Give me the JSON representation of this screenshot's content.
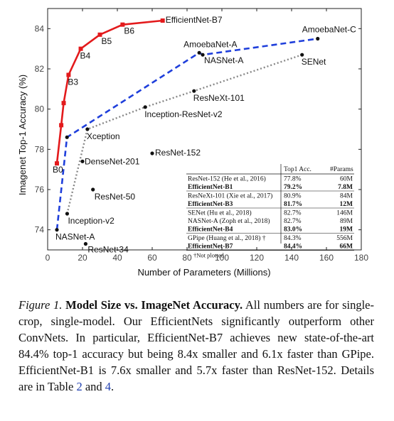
{
  "chart_data": {
    "type": "scatter",
    "xlabel": "Number of Parameters (Millions)",
    "ylabel": "Imagenet Top-1 Accuracy (%)",
    "xlim": [
      0,
      180
    ],
    "ylim": [
      73,
      85
    ],
    "x_ticks": [
      0,
      20,
      40,
      60,
      80,
      100,
      120,
      140,
      160,
      180
    ],
    "y_ticks": [
      74,
      76,
      78,
      80,
      82,
      84
    ],
    "grid": false,
    "colors": {
      "efficientnet": "#e31a1c",
      "nas": "#1f3fdb",
      "handcrafted": "#888888",
      "point": "#111111"
    },
    "series": [
      {
        "style": "red-solid",
        "points": [
          {
            "label": "B0",
            "x": 5.3,
            "y": 77.3
          },
          {
            "label": "",
            "x": 7.8,
            "y": 79.2
          },
          {
            "label": "",
            "x": 9.2,
            "y": 80.3
          },
          {
            "label": "B3",
            "x": 12,
            "y": 81.7
          },
          {
            "label": "B4",
            "x": 19,
            "y": 83.0
          },
          {
            "label": "B5",
            "x": 30,
            "y": 83.7
          },
          {
            "label": "B6",
            "x": 43,
            "y": 84.2
          },
          {
            "label": "EfficientNet-B7",
            "x": 66,
            "y": 84.4
          }
        ]
      },
      {
        "style": "blue-dashed",
        "points": [
          {
            "label": "NASNet-A",
            "x": 5.3,
            "y": 74.0
          },
          {
            "label": "",
            "x": 11.1,
            "y": 78.6
          },
          {
            "label": "AmoebaNet-A",
            "x": 87,
            "y": 82.8
          },
          {
            "label": "NASNet-A",
            "x": 89,
            "y": 82.7
          },
          {
            "label": "AmoebaNet-C",
            "x": 155,
            "y": 83.5
          }
        ]
      },
      {
        "style": "gray-dotted",
        "points": [
          {
            "label": "Inception-v2",
            "x": 11.2,
            "y": 74.8
          },
          {
            "label": "Xception",
            "x": 22.8,
            "y": 79.0
          },
          {
            "label": "Inception-ResNet-v2",
            "x": 56,
            "y": 80.1
          },
          {
            "label": "ResNeXt-101",
            "x": 84,
            "y": 80.9
          },
          {
            "label": "SENet",
            "x": 146,
            "y": 82.7
          }
        ]
      },
      {
        "style": "isolated",
        "points": [
          {
            "label": "DenseNet-201",
            "x": 20,
            "y": 77.4
          },
          {
            "label": "ResNet-50",
            "x": 26,
            "y": 76.0
          },
          {
            "label": "ResNet-152",
            "x": 60,
            "y": 77.8
          },
          {
            "label": "ResNet-34",
            "x": 21.8,
            "y": 73.3
          }
        ]
      }
    ],
    "table": {
      "headers": [
        "",
        "Top1 Acc.",
        "#Params"
      ],
      "groups": [
        [
          {
            "model": "ResNet-152 (He et al., 2016)",
            "acc": "77.8%",
            "params": "60M",
            "bold": false
          },
          {
            "model": "EfficientNet-B1",
            "acc": "79.2%",
            "params": "7.8M",
            "bold": true
          }
        ],
        [
          {
            "model": "ResNeXt-101 (Xie et al., 2017)",
            "acc": "80.9%",
            "params": "84M",
            "bold": false
          },
          {
            "model": "EfficientNet-B3",
            "acc": "81.7%",
            "params": "12M",
            "bold": true
          }
        ],
        [
          {
            "model": "SENet (Hu et al., 2018)",
            "acc": "82.7%",
            "params": "146M",
            "bold": false
          },
          {
            "model": "NASNet-A (Zoph et al., 2018)",
            "acc": "82.7%",
            "params": "89M",
            "bold": false
          },
          {
            "model": "EfficientNet-B4",
            "acc": "83.0%",
            "params": "19M",
            "bold": true
          }
        ],
        [
          {
            "model": "GPipe (Huang et al., 2018) †",
            "acc": "84.3%",
            "params": "556M",
            "bold": false
          },
          {
            "model": "EfficientNet-B7",
            "acc": "84.4%",
            "params": "66M",
            "bold": true
          }
        ]
      ],
      "footnote": "†Not plotted"
    }
  },
  "caption": {
    "figure_label": "Figure 1.",
    "title": "Model Size vs. ImageNet Accuracy.",
    "text_1": " All numbers are for single-crop, single-model. Our EfficientNets significantly outperform other ConvNets. In particular, EfficientNet-B7 achieves new state-of-the-art 84.4% top-1 accuracy but being 8.4x smaller and 6.1x faster than GPipe. EfficientNet-B1 is 7.6x smaller and 5.7x faster than ResNet-152. Details are in Table ",
    "ref_table_1": "2",
    "text_2": " and ",
    "ref_table_2": "4",
    "text_3": "."
  }
}
